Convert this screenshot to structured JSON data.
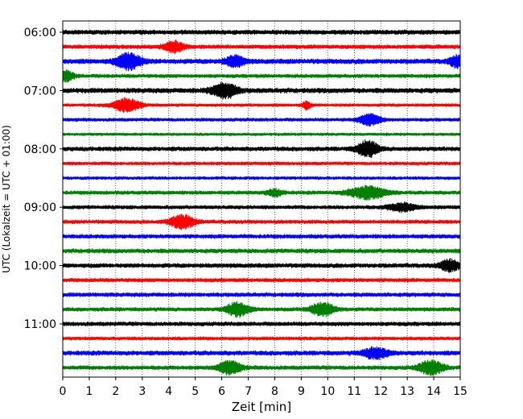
{
  "chart_data": {
    "type": "line",
    "title": "",
    "xlabel": "Zeit  [min]",
    "ylabel": "UTC (Lokalzeit = UTC + 01:00)",
    "xlim": [
      0,
      15
    ],
    "x_ticks": [
      "0",
      "1",
      "2",
      "3",
      "4",
      "5",
      "6",
      "7",
      "8",
      "9",
      "10",
      "11",
      "12",
      "13",
      "14",
      "15"
    ],
    "y_tick_labels": [
      "06:00",
      "07:00",
      "08:00",
      "09:00",
      "10:00",
      "11:00"
    ],
    "y_tick_rows": [
      0,
      4,
      8,
      12,
      16,
      20
    ],
    "grid": "vertical dotted at each minute",
    "legend": "none",
    "row_interval_minutes": 15,
    "start_time_utc": "06:00",
    "row_colors": [
      "#000000",
      "#ff0000",
      "#0000ff",
      "#008000"
    ],
    "rows": [
      {
        "time": "06:00",
        "noise": 0.42,
        "events": []
      },
      {
        "time": "06:15",
        "noise": 0.38,
        "events": [
          {
            "t": 4.2,
            "amp": 1.05,
            "width": 0.35
          }
        ]
      },
      {
        "time": "06:30",
        "noise": 0.45,
        "events": [
          {
            "t": 2.5,
            "amp": 1.55,
            "width": 0.45
          },
          {
            "t": 6.5,
            "amp": 1.0,
            "width": 0.35
          },
          {
            "t": 14.9,
            "amp": 1.0,
            "width": 0.3
          }
        ]
      },
      {
        "time": "06:45",
        "noise": 0.35,
        "events": [
          {
            "t": 0.1,
            "amp": 1.0,
            "width": 0.3
          }
        ]
      },
      {
        "time": "07:00",
        "noise": 0.45,
        "events": [
          {
            "t": 6.1,
            "amp": 1.4,
            "width": 0.45
          }
        ]
      },
      {
        "time": "07:15",
        "noise": 0.3,
        "events": [
          {
            "t": 2.4,
            "amp": 1.2,
            "width": 0.5
          },
          {
            "t": 9.2,
            "amp": 0.7,
            "width": 0.15
          }
        ]
      },
      {
        "time": "07:30",
        "noise": 0.32,
        "events": [
          {
            "t": 11.6,
            "amp": 1.05,
            "width": 0.4
          }
        ]
      },
      {
        "time": "07:45",
        "noise": 0.28,
        "events": []
      },
      {
        "time": "08:00",
        "noise": 0.4,
        "events": [
          {
            "t": 11.5,
            "amp": 1.45,
            "width": 0.4
          }
        ]
      },
      {
        "time": "08:15",
        "noise": 0.32,
        "events": []
      },
      {
        "time": "08:30",
        "noise": 0.3,
        "events": []
      },
      {
        "time": "08:45",
        "noise": 0.35,
        "events": [
          {
            "t": 8.0,
            "amp": 0.6,
            "width": 0.3
          },
          {
            "t": 11.5,
            "amp": 1.15,
            "width": 0.7
          }
        ]
      },
      {
        "time": "09:00",
        "noise": 0.35,
        "events": [
          {
            "t": 12.8,
            "amp": 0.75,
            "width": 0.5
          }
        ]
      },
      {
        "time": "09:15",
        "noise": 0.35,
        "events": [
          {
            "t": 4.5,
            "amp": 1.3,
            "width": 0.45
          }
        ]
      },
      {
        "time": "09:30",
        "noise": 0.38,
        "events": []
      },
      {
        "time": "09:45",
        "noise": 0.4,
        "events": []
      },
      {
        "time": "10:00",
        "noise": 0.4,
        "events": [
          {
            "t": 14.6,
            "amp": 1.05,
            "width": 0.35
          }
        ]
      },
      {
        "time": "10:15",
        "noise": 0.36,
        "events": []
      },
      {
        "time": "10:30",
        "noise": 0.38,
        "events": []
      },
      {
        "time": "10:45",
        "noise": 0.36,
        "events": [
          {
            "t": 6.6,
            "amp": 1.3,
            "width": 0.4
          },
          {
            "t": 9.8,
            "amp": 1.2,
            "width": 0.45
          }
        ]
      },
      {
        "time": "11:00",
        "noise": 0.38,
        "events": []
      },
      {
        "time": "11:15",
        "noise": 0.32,
        "events": []
      },
      {
        "time": "11:30",
        "noise": 0.42,
        "events": [
          {
            "t": 11.8,
            "amp": 1.05,
            "width": 0.45
          }
        ]
      },
      {
        "time": "11:45",
        "noise": 0.38,
        "events": [
          {
            "t": 6.3,
            "amp": 1.25,
            "width": 0.4
          },
          {
            "t": 13.9,
            "amp": 1.3,
            "width": 0.45
          }
        ]
      }
    ]
  }
}
